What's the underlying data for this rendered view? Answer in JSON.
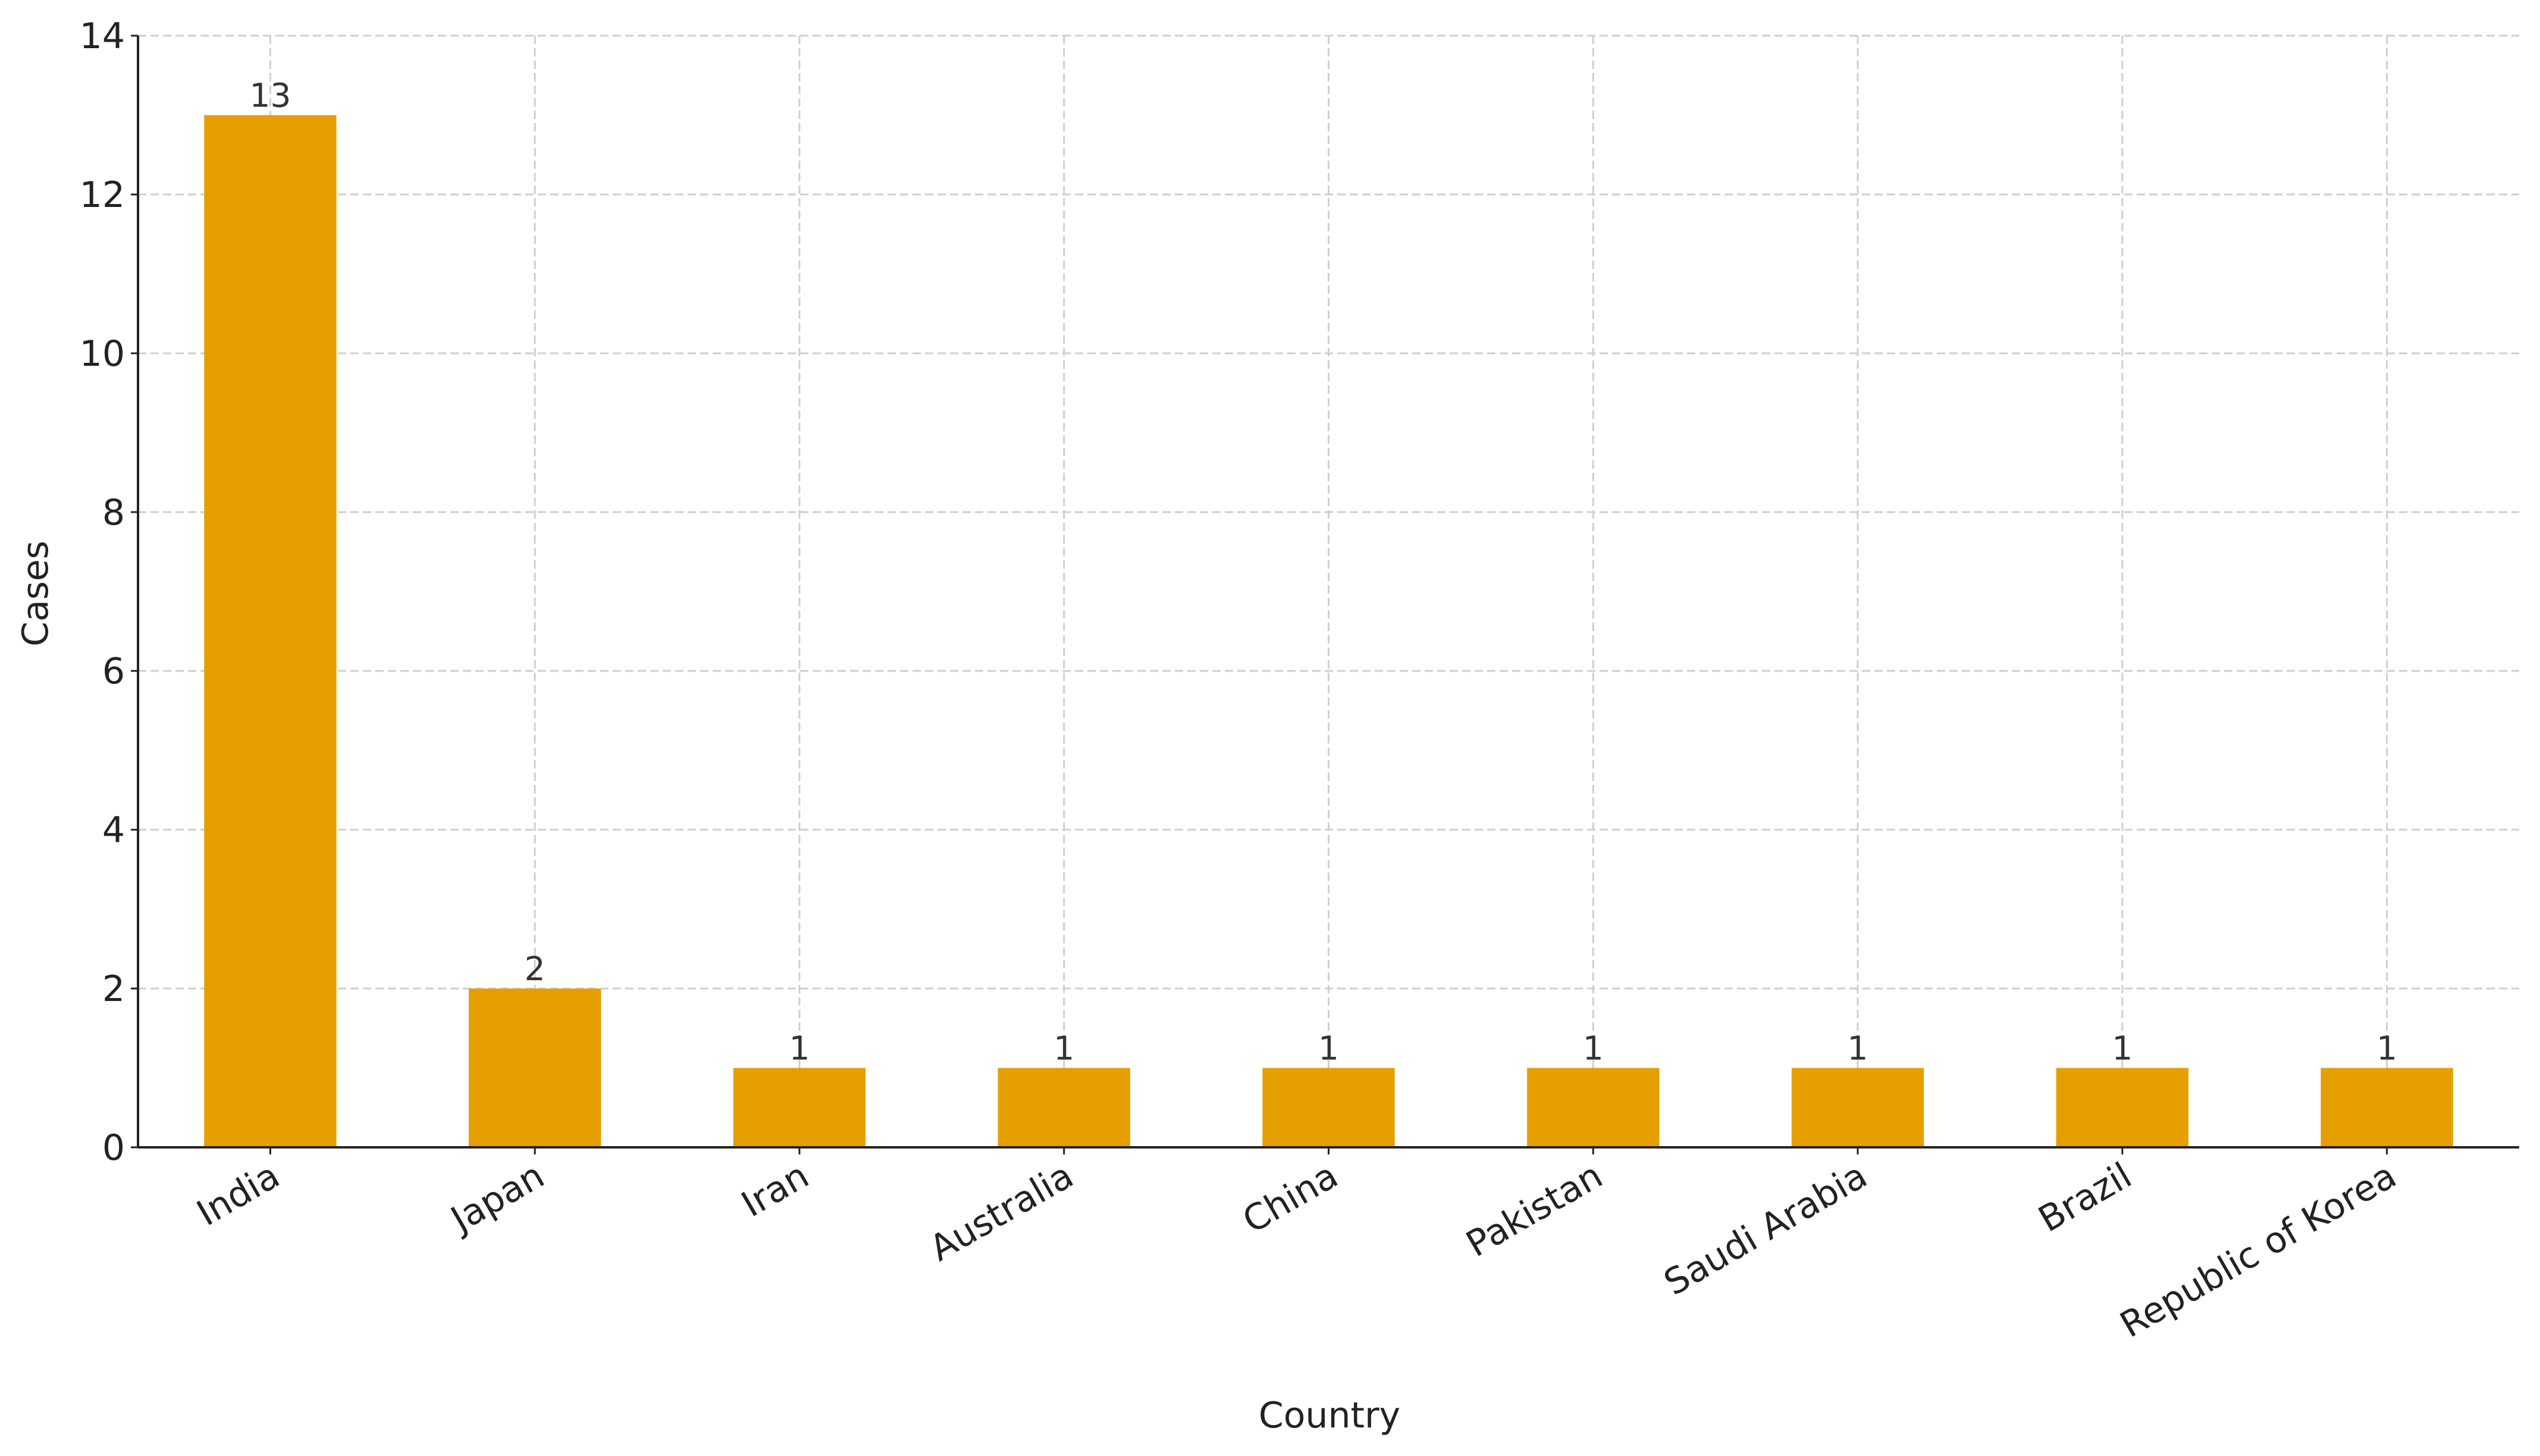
{
  "chart_data": {
    "type": "bar",
    "x_label": "Country",
    "y_label": "Cases",
    "categories": [
      "India",
      "Japan",
      "Iran",
      "Australia",
      "China",
      "Pakistan",
      "Saudi Arabia",
      "Brazil",
      "Republic of Korea"
    ],
    "values": [
      13,
      2,
      1,
      1,
      1,
      1,
      1,
      1,
      1
    ],
    "color": "#e5a000",
    "ylim": [
      0,
      14
    ],
    "yticks": [
      0,
      2,
      4,
      6,
      8,
      10,
      12,
      14
    ],
    "grid": true
  }
}
